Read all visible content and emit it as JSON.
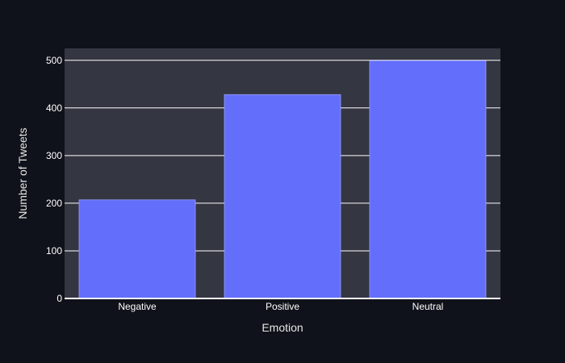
{
  "chart_data": {
    "type": "bar",
    "title": "",
    "xlabel": "Emotion",
    "ylabel": "Number of Tweets",
    "categories": [
      "Negative",
      "Positive",
      "Neutral"
    ],
    "values": [
      207,
      428,
      499
    ],
    "ylim": [
      0,
      525
    ],
    "yticks": [
      0,
      100,
      200,
      300,
      400,
      500
    ],
    "grid": true,
    "legend": "none",
    "colors": {
      "background": "#0f121a",
      "plot_background": "#343642",
      "bar_fill": "#636efa",
      "bar_outline": "#9aa0ff",
      "grid": "#ffffff",
      "text": "#ffffff"
    }
  }
}
